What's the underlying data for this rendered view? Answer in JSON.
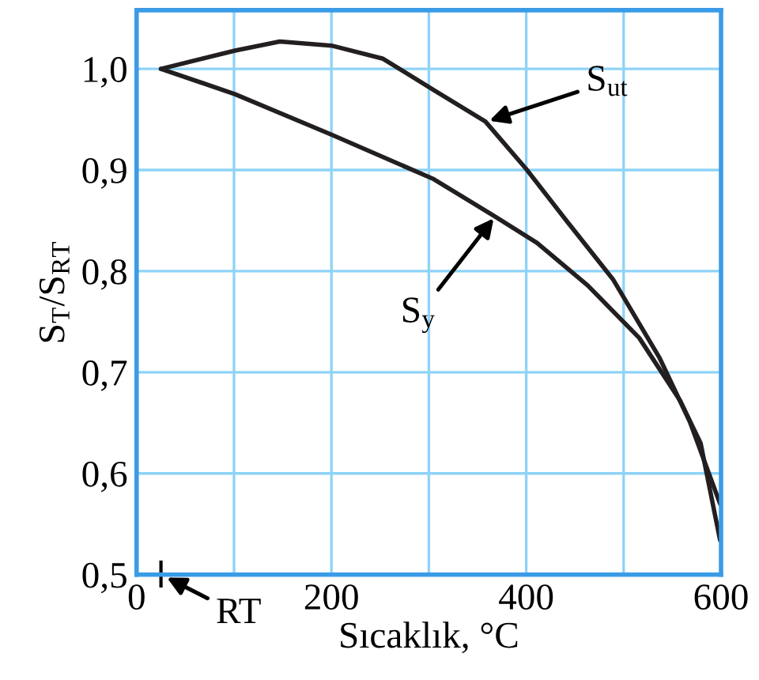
{
  "chart_data": {
    "type": "line",
    "xlabel": "Sıcaklık, °C",
    "ylabel": "S$_{T}$/S$_{RT}$",
    "xlim": [
      0,
      600
    ],
    "ylim": [
      0.5,
      1.058
    ],
    "xticks": [
      0,
      {
        "value": 100,
        "label": null
      },
      200,
      {
        "value": 300,
        "label": null
      },
      400,
      {
        "value": 500,
        "label": null
      },
      600
    ],
    "yticks": [
      {
        "value": 0.5,
        "label": "0,5"
      },
      {
        "value": 0.6,
        "label": "0,6"
      },
      {
        "value": 0.7,
        "label": "0,7"
      },
      {
        "value": 0.8,
        "label": "0,8"
      },
      {
        "value": 0.9,
        "label": "0,9"
      },
      {
        "value": 1.0,
        "label": "1,0"
      }
    ],
    "grid": true,
    "marker": "none",
    "line_style": "solid",
    "series": [
      {
        "color": "#231f20",
        "x": [
          25,
          101,
          147,
          200,
          253,
          305,
          358,
          400,
          442,
          489,
          537,
          568,
          599
        ],
        "values": [
          1.0,
          1.018,
          1.027,
          1.023,
          1.01,
          0.979,
          0.948,
          0.901,
          0.849,
          0.792,
          0.714,
          0.651,
          0.57
        ]
      },
      {
        "color": "#231f20",
        "x": [
          25,
          101,
          200,
          305,
          368,
          411,
          463,
          516,
          558,
          579,
          599
        ],
        "values": [
          1.0,
          0.975,
          0.935,
          0.891,
          0.854,
          0.828,
          0.786,
          0.734,
          0.672,
          0.63,
          0.534
        ]
      }
    ],
    "annotations": [
      {
        "text": "S$_{ut}$",
        "x": 360,
        "y": 0.948
      },
      {
        "text": "S$_{y}$",
        "x": 368,
        "y": 0.854
      }
    ],
    "ref_lines": [
      {
        "axis": "x",
        "value": 25,
        "label": "RT",
        "color": "#000000"
      }
    ]
  }
}
